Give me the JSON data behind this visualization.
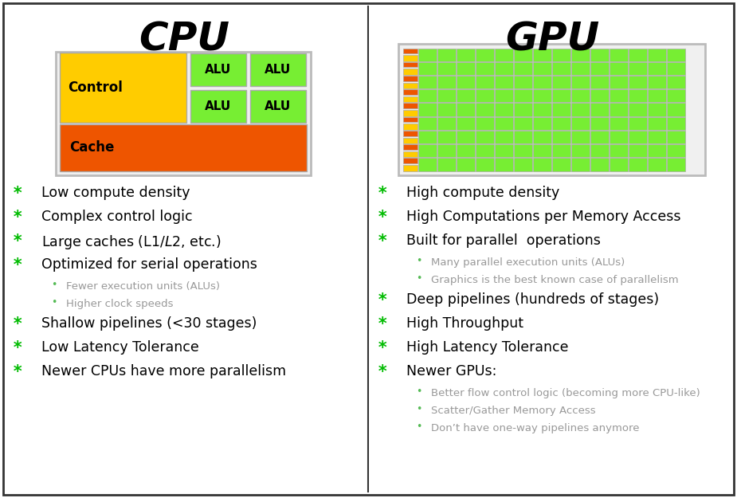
{
  "title_cpu": "CPU",
  "title_gpu": "GPU",
  "bg_color": "#ffffff",
  "border_color": "#333333",
  "title_fontsize": 36,
  "title_fontweight": "bold",
  "star_color": "#00bb00",
  "bullet_color": "#55bb55",
  "text_color": "#000000",
  "subtext_color": "#999999",
  "cpu_diagram": {
    "control_color": "#ffcc00",
    "alu_color": "#77ee33",
    "cache_color": "#ee5500",
    "outline_color": "#cccccc",
    "bg_color": "#f0f0f0"
  },
  "gpu_diagram": {
    "orange_color": "#ee5500",
    "yellow_color": "#ffcc00",
    "alu_color": "#77ee33",
    "outline_color": "#cccccc",
    "bg_color": "#f0f0f0"
  },
  "cpu_bullets": [
    {
      "text": "Low compute density",
      "level": 0
    },
    {
      "text": "Complex control logic",
      "level": 0
    },
    {
      "text": "Large caches (L1$/L2$, etc.)",
      "level": 0
    },
    {
      "text": "Optimized for serial operations",
      "level": 0
    },
    {
      "text": "Fewer execution units (ALUs)",
      "level": 1
    },
    {
      "text": "Higher clock speeds",
      "level": 1
    },
    {
      "text": "Shallow pipelines (<30 stages)",
      "level": 0
    },
    {
      "text": "Low Latency Tolerance",
      "level": 0
    },
    {
      "text": "Newer CPUs have more parallelism",
      "level": 0
    }
  ],
  "gpu_bullets": [
    {
      "text": "High compute density",
      "level": 0
    },
    {
      "text": "High Computations per Memory Access",
      "level": 0
    },
    {
      "text": "Built for parallel  operations",
      "level": 0
    },
    {
      "text": "Many parallel execution units (ALUs)",
      "level": 1
    },
    {
      "text": "Graphics is the best known case of parallelism",
      "level": 1
    },
    {
      "text": "Deep pipelines (hundreds of stages)",
      "level": 0
    },
    {
      "text": "High Throughput",
      "level": 0
    },
    {
      "text": "High Latency Tolerance",
      "level": 0
    },
    {
      "text": "Newer GPUs:",
      "level": 0
    },
    {
      "text": "Better flow control logic (becoming more CPU-like)",
      "level": 1
    },
    {
      "text": "Scatter/Gather Memory Access",
      "level": 1
    },
    {
      "text": "Don’t have one-way pipelines anymore",
      "level": 1
    }
  ]
}
